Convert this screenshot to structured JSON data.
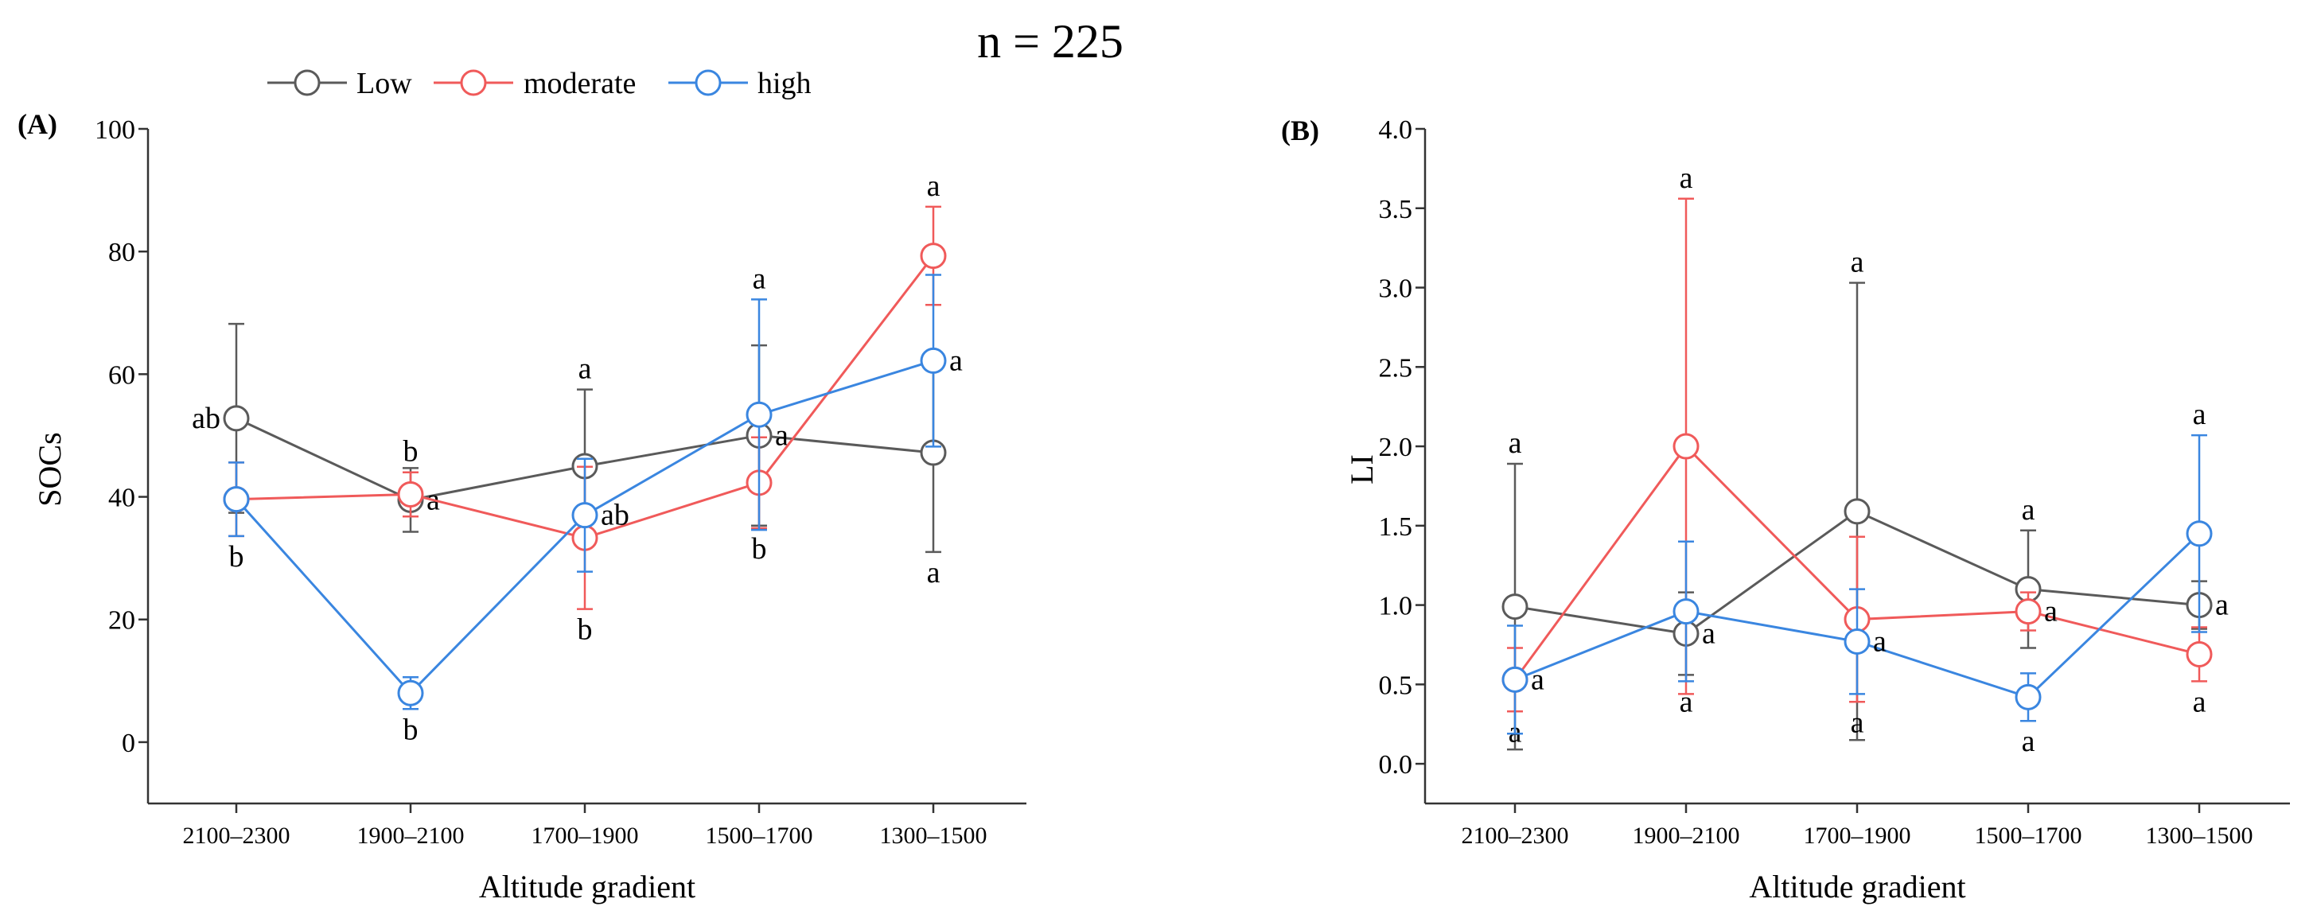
{
  "figure": {
    "title": "n = 225"
  },
  "legend": {
    "placement": "top-left",
    "entries": [
      {
        "name": "Low",
        "color": "#5a5a5a"
      },
      {
        "name": "moderate",
        "color": "#f05a5a"
      },
      {
        "name": "high",
        "color": "#3a86e0"
      }
    ]
  },
  "chart_data": [
    {
      "type": "line",
      "panel_label": "(A)",
      "title": "",
      "xlabel": "Altitude gradient",
      "ylabel": "SOCs",
      "categories": [
        "2100–2300",
        "1900–2100",
        "1700–1900",
        "1500–1700",
        "1300–1500"
      ],
      "ylim": [
        -10,
        100
      ],
      "yticks": [
        0,
        20,
        40,
        60,
        80,
        100
      ],
      "ytick_labels": [
        "0",
        "20",
        "40",
        "60",
        "80",
        "100"
      ],
      "grid": false,
      "series": [
        {
          "name": "Low",
          "color": "#5a5a5a",
          "values": [
            52.8,
            39.5,
            45,
            50,
            47.2
          ],
          "errors": [
            15.4,
            5.2,
            12.5,
            14.7,
            16.2
          ],
          "letters": [
            "ab",
            "a",
            "a",
            "a",
            "a"
          ],
          "letter_pos": [
            "left",
            "right",
            "above",
            "right",
            "below"
          ]
        },
        {
          "name": "moderate",
          "color": "#f05a5a",
          "values": [
            39.6,
            40.4,
            33.3,
            42.3,
            79.3
          ],
          "errors": [
            6.0,
            3.6,
            11.6,
            7.4,
            8.0
          ],
          "letters": [
            "b",
            "b",
            "b",
            "b",
            "a"
          ],
          "letter_pos": [
            "below",
            "above",
            "below",
            "below",
            "above"
          ]
        },
        {
          "name": "high",
          "color": "#3a86e0",
          "values": [
            39.6,
            8,
            37,
            53.4,
            62.2
          ],
          "errors": [
            6.0,
            2.6,
            9.2,
            18.8,
            14
          ],
          "letters": [
            "",
            "b",
            "ab",
            "a",
            "a"
          ],
          "letter_pos": [
            "none",
            "below",
            "right",
            "above",
            "right"
          ]
        }
      ]
    },
    {
      "type": "line",
      "panel_label": "(B)",
      "title": "",
      "xlabel": "Altitude gradient",
      "ylabel": "LI",
      "categories": [
        "2100–2300",
        "1900–2100",
        "1700–1900",
        "1500–1700",
        "1300–1500"
      ],
      "ylim": [
        -0.25,
        4.0
      ],
      "yticks": [
        0,
        0.5,
        1,
        1.5,
        2,
        2.5,
        3,
        3.5,
        4
      ],
      "ytick_labels": [
        "0.0",
        "0.5",
        "1.0",
        "1.5",
        "2.0",
        "2.5",
        "3.0",
        "3.5",
        "4.0"
      ],
      "grid": false,
      "series": [
        {
          "name": "Low",
          "color": "#5a5a5a",
          "values": [
            0.99,
            0.82,
            1.59,
            1.1,
            1.0
          ],
          "errors": [
            0.9,
            0.26,
            1.44,
            0.37,
            0.15
          ],
          "letters": [
            "a",
            "a",
            "a",
            "a",
            "a"
          ],
          "letter_pos": [
            "above",
            "right",
            "above",
            "above",
            "right"
          ]
        },
        {
          "name": "moderate",
          "color": "#f05a5a",
          "values": [
            0.53,
            2.0,
            0.91,
            0.96,
            0.69
          ],
          "errors": [
            0.2,
            1.56,
            0.52,
            0.12,
            0.17
          ],
          "letters": [
            "a",
            "a",
            "a",
            "a",
            "a"
          ],
          "letter_pos": [
            "below",
            "above",
            "below",
            "right",
            "below"
          ]
        },
        {
          "name": "high",
          "color": "#3a86e0",
          "values": [
            0.53,
            0.96,
            0.77,
            0.42,
            1.45
          ],
          "errors": [
            0.34,
            0.44,
            0.33,
            0.15,
            0.62
          ],
          "letters": [
            "a",
            "a",
            "a",
            "a",
            "a"
          ],
          "letter_pos": [
            "right",
            "below",
            "right",
            "below",
            "above"
          ]
        }
      ]
    }
  ]
}
